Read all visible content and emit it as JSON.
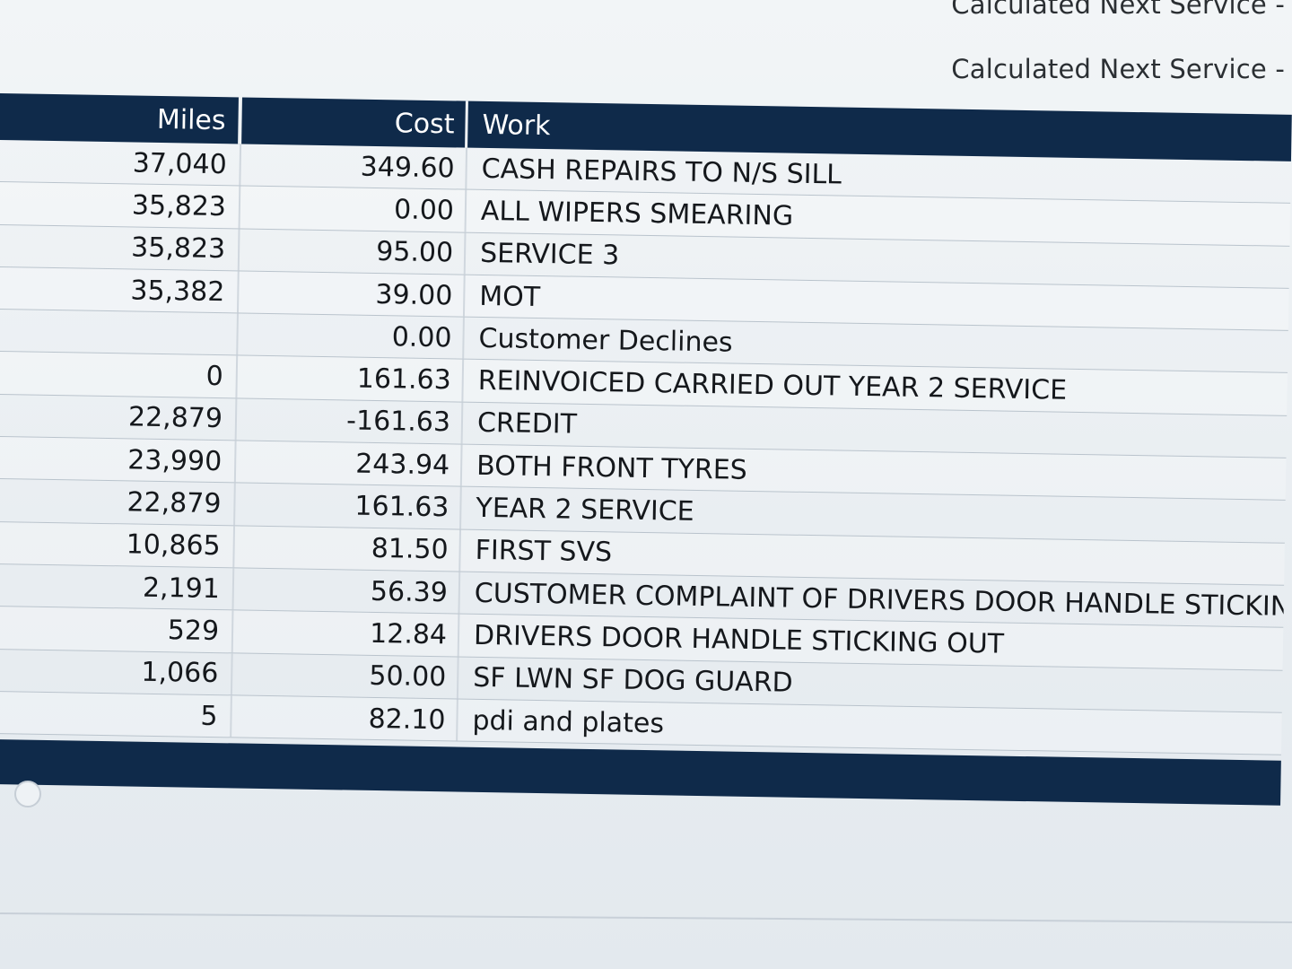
{
  "header": {
    "calculated_next_service_1": "Calculated Next Service -",
    "calculated_next_service_2": "Calculated Next Service -"
  },
  "table": {
    "columns": {
      "miles": "Miles",
      "cost": "Cost",
      "work": "Work"
    },
    "rows": [
      {
        "miles": "37,040",
        "cost": "349.60",
        "work": "CASH REPAIRS TO N/S SILL"
      },
      {
        "miles": "35,823",
        "cost": "0.00",
        "work": "ALL WIPERS SMEARING"
      },
      {
        "miles": "35,823",
        "cost": "95.00",
        "work": "SERVICE 3"
      },
      {
        "miles": "35,382",
        "cost": "39.00",
        "work": "MOT"
      },
      {
        "miles": "",
        "cost": "0.00",
        "work": "Customer Declines"
      },
      {
        "miles": "0",
        "cost": "161.63",
        "work": "REINVOICED CARRIED OUT YEAR 2 SERVICE"
      },
      {
        "miles": "22,879",
        "cost": "-161.63",
        "work": "CREDIT"
      },
      {
        "miles": "23,990",
        "cost": "243.94",
        "work": "BOTH FRONT TYRES"
      },
      {
        "miles": "22,879",
        "cost": "161.63",
        "work": "YEAR 2 SERVICE"
      },
      {
        "miles": "10,865",
        "cost": "81.50",
        "work": "FIRST SVS"
      },
      {
        "miles": "2,191",
        "cost": "56.39",
        "work": "CUSTOMER COMPLAINT OF DRIVERS DOOR HANDLE STICKING I"
      },
      {
        "miles": "529",
        "cost": "12.84",
        "work": "DRIVERS DOOR HANDLE STICKING OUT"
      },
      {
        "miles": "1,066",
        "cost": "50.00",
        "work": "SF LWN SF DOG GUARD"
      },
      {
        "miles": "5",
        "cost": "82.10",
        "work": "pdi and plates"
      }
    ]
  },
  "colors": {
    "header_bg": "#0f2a4a",
    "page_bg": "#e9eef2"
  }
}
